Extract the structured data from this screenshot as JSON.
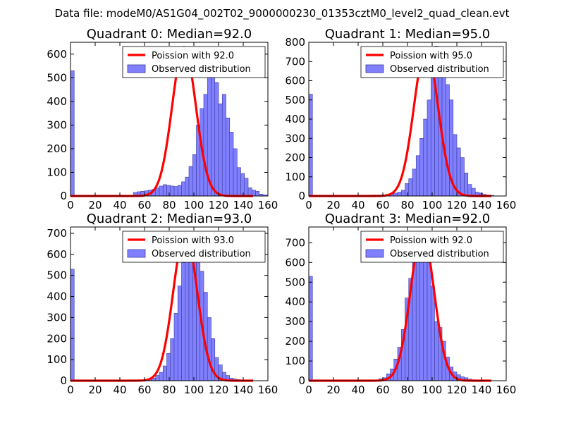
{
  "figure": {
    "suptitle": "Data file: modeM0/AS1G04_002T02_9000000230_01353cztM0_level2_quad_clean.evt"
  },
  "colors": {
    "bar_fill": "#8080ff",
    "bar_edge": "#3b3b9b",
    "line": "#ff0000"
  },
  "chart_data": [
    {
      "type": "bar",
      "title": "Quadrant 0: Median=92.0",
      "median": 92.0,
      "xlim": [
        0,
        160
      ],
      "ylim": [
        0,
        650
      ],
      "xticks": [
        "0",
        "20",
        "40",
        "60",
        "80",
        "100",
        "120",
        "140",
        "160"
      ],
      "yticks": [
        "0",
        "100",
        "200",
        "300",
        "400",
        "500",
        "600"
      ],
      "legend": {
        "line_label": "Poission with 92.0",
        "bar_label": "Observed distribution",
        "loc": "upper right"
      },
      "bin_width": 3.0,
      "bin_start": 0,
      "values": [
        530,
        0,
        0,
        0,
        0,
        0,
        0,
        0,
        0,
        0,
        0,
        0,
        0,
        0,
        0,
        0,
        0,
        15,
        18,
        20,
        22,
        25,
        28,
        35,
        42,
        48,
        45,
        42,
        40,
        45,
        60,
        80,
        125,
        175,
        300,
        370,
        430,
        545,
        595,
        480,
        390,
        430,
        330,
        270,
        200,
        120,
        95,
        75,
        35,
        25,
        20,
        8,
        5,
        2,
        0
      ],
      "poisson_mean": 92.0,
      "poisson_peak": 630
    },
    {
      "type": "bar",
      "title": "Quadrant 1: Median=95.0",
      "median": 95.0,
      "xlim": [
        0,
        160
      ],
      "ylim": [
        0,
        800
      ],
      "xticks": [
        "0",
        "20",
        "40",
        "60",
        "80",
        "100",
        "120",
        "140",
        "160"
      ],
      "yticks": [
        "0",
        "100",
        "200",
        "300",
        "400",
        "500",
        "600",
        "700",
        "800"
      ],
      "legend": {
        "line_label": "Poission with 95.0",
        "bar_label": "Observed distribution",
        "loc": "upper right"
      },
      "bin_width": 3.0,
      "bin_start": 0,
      "values": [
        530,
        0,
        0,
        0,
        0,
        0,
        0,
        0,
        0,
        0,
        0,
        0,
        0,
        0,
        0,
        0,
        0,
        5,
        5,
        5,
        6,
        10,
        12,
        15,
        20,
        30,
        65,
        90,
        140,
        210,
        300,
        400,
        500,
        700,
        780,
        740,
        700,
        580,
        500,
        320,
        250,
        200,
        120,
        60,
        40,
        20,
        15,
        8,
        5,
        3,
        0,
        0,
        0,
        0
      ],
      "poisson_mean": 95.0,
      "poisson_peak": 770
    },
    {
      "type": "bar",
      "title": "Quadrant 2: Median=93.0",
      "median": 93.0,
      "xlim": [
        0,
        160
      ],
      "ylim": [
        0,
        730
      ],
      "xticks": [
        "0",
        "20",
        "40",
        "60",
        "80",
        "100",
        "120",
        "140",
        "160"
      ],
      "yticks": [
        "0",
        "100",
        "200",
        "300",
        "400",
        "500",
        "600",
        "700"
      ],
      "legend": {
        "line_label": "Poission with 93.0",
        "bar_label": "Observed distribution",
        "loc": "upper right"
      },
      "bin_width": 3.0,
      "bin_start": 0,
      "values": [
        530,
        0,
        0,
        0,
        0,
        0,
        0,
        0,
        0,
        0,
        0,
        0,
        0,
        0,
        0,
        0,
        0,
        0,
        0,
        0,
        5,
        8,
        12,
        25,
        40,
        70,
        130,
        200,
        320,
        450,
        560,
        650,
        700,
        680,
        620,
        520,
        420,
        300,
        200,
        110,
        75,
        40,
        25,
        12,
        8,
        5,
        2,
        0,
        0,
        0,
        0,
        0,
        0,
        0
      ],
      "poisson_mean": 93.0,
      "poisson_peak": 705
    },
    {
      "type": "bar",
      "title": "Quadrant 3: Median=92.0",
      "median": 92.0,
      "xlim": [
        0,
        160
      ],
      "ylim": [
        0,
        780
      ],
      "xticks": [
        "0",
        "20",
        "40",
        "60",
        "80",
        "100",
        "120",
        "140",
        "160"
      ],
      "yticks": [
        "0",
        "100",
        "200",
        "300",
        "400",
        "500",
        "600",
        "700"
      ],
      "legend": {
        "line_label": "Poission with 92.0",
        "bar_label": "Observed distribution",
        "loc": "upper right"
      },
      "bin_width": 3.0,
      "bin_start": 0,
      "values": [
        530,
        0,
        0,
        0,
        0,
        0,
        0,
        0,
        0,
        0,
        0,
        0,
        0,
        0,
        0,
        0,
        0,
        0,
        0,
        10,
        15,
        35,
        60,
        110,
        170,
        260,
        420,
        520,
        640,
        720,
        750,
        700,
        600,
        480,
        300,
        270,
        200,
        120,
        70,
        45,
        30,
        20,
        15,
        8,
        5,
        3,
        0,
        0,
        0,
        0,
        0,
        0,
        0,
        0
      ],
      "poisson_mean": 92.0,
      "poisson_peak": 750
    }
  ]
}
